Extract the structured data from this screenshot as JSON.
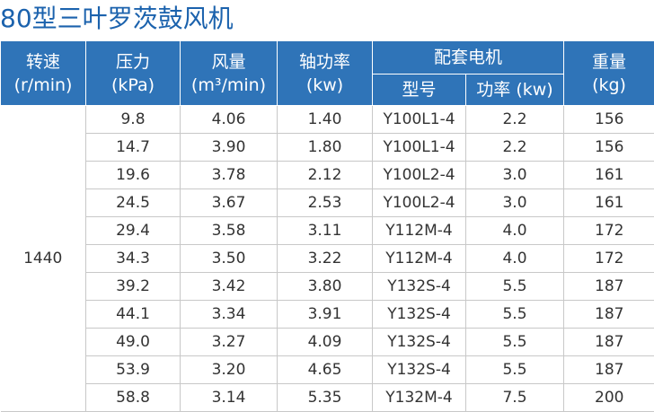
{
  "title": "80型三叶罗茨鼓风机",
  "header": {
    "speed": {
      "name": "转速",
      "unit": "(r/min)"
    },
    "pressure": {
      "name": "压力",
      "unit": "(kPa)"
    },
    "flow": {
      "name": "风量",
      "unit": "(m³/min)"
    },
    "shaft_power": {
      "name": "轴功率",
      "unit": "(kw)"
    },
    "motor": {
      "name": "配套电机",
      "model": "型号",
      "power": "功率 (kw)"
    },
    "weight": {
      "name": "重量",
      "unit": "(kg)"
    }
  },
  "speed_value": "1440",
  "rows": [
    [
      "9.8",
      "4.06",
      "1.40",
      "Y100L1-4",
      "2.2",
      "156"
    ],
    [
      "14.7",
      "3.90",
      "1.80",
      "Y100L1-4",
      "2.2",
      "156"
    ],
    [
      "19.6",
      "3.78",
      "2.12",
      "Y100L2-4",
      "3.0",
      "161"
    ],
    [
      "24.5",
      "3.67",
      "2.53",
      "Y100L2-4",
      "3.0",
      "161"
    ],
    [
      "29.4",
      "3.58",
      "3.11",
      "Y112M-4",
      "4.0",
      "172"
    ],
    [
      "34.3",
      "3.50",
      "3.22",
      "Y112M-4",
      "4.0",
      "172"
    ],
    [
      "39.2",
      "3.42",
      "3.80",
      "Y132S-4",
      "5.5",
      "187"
    ],
    [
      "44.1",
      "3.34",
      "3.91",
      "Y132S-4",
      "5.5",
      "187"
    ],
    [
      "49.0",
      "3.27",
      "4.09",
      "Y132S-4",
      "5.5",
      "187"
    ],
    [
      "53.9",
      "3.20",
      "4.65",
      "Y132S-4",
      "5.5",
      "187"
    ],
    [
      "58.8",
      "3.14",
      "5.35",
      "Y132M-4",
      "7.5",
      "200"
    ]
  ]
}
